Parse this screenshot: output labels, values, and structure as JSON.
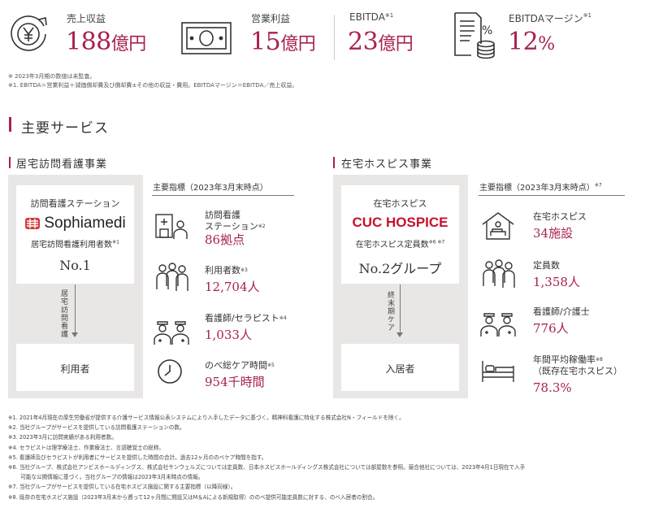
{
  "kpis": [
    {
      "label": "売上収益",
      "sup": "",
      "number": "188",
      "unit": "億円",
      "icon": "yen-coin-up-icon"
    },
    {
      "label": "営業利益",
      "sup": "",
      "number": "15",
      "unit": "億円",
      "icon": "banknote-icon"
    },
    {
      "label": "EBITDA",
      "sup": "※1",
      "number": "23",
      "unit": "億円",
      "icon": ""
    },
    {
      "label": "EBITDAマージン",
      "sup": "※1",
      "number": "12",
      "unit": "%",
      "icon": "document-coins-percent-icon"
    }
  ],
  "kpi_notes": [
    "※ 2023年3月期の数値は未監査。",
    "※1. EBITDA＝営業利益＋減価償却費及び償却費±その他の収益・費用。EBITDAマージン＝EBITDA／売上収益。"
  ],
  "section_title": "主要サービス",
  "services": [
    {
      "title": "居宅訪問看護事業",
      "box_line1": "訪問看護ステーション",
      "brand": "Sophiamedi",
      "box_line2": "居宅訪問看護利用者数",
      "box_line2_sup": "※1",
      "rank": "No.1",
      "flow_label": "居宅訪問看護",
      "bottom_label": "利用者",
      "indicators_head": "主要指標（2023年3月末時点）",
      "indicators_head_sup": "",
      "indicators": [
        {
          "label1": "訪問看護",
          "label2": "ステーション",
          "sup": "※2",
          "value": "86拠点",
          "icon": "nurse-station-icon"
        },
        {
          "label1": "利用者数",
          "label2": "",
          "sup": "※3",
          "value": "12,704人",
          "icon": "users-group-icon"
        },
        {
          "label1": "看護師/セラピスト",
          "label2": "",
          "sup": "※4",
          "value": "1,033人",
          "icon": "nurses-icon"
        },
        {
          "label1": "のべ総ケア時間",
          "label2": "",
          "sup": "※5",
          "value": "954千時間",
          "icon": "clock-icon"
        }
      ]
    },
    {
      "title": "在宅ホスピス事業",
      "box_line1": "在宅ホスピス",
      "brand": "CUC HOSPICE",
      "box_line2": "在宅ホスピス定員数",
      "box_line2_sup": "※6 ※7",
      "rank": "No.2グループ",
      "flow_label": "終末期ケア",
      "bottom_label": "入居者",
      "indicators_head": "主要指標（2023年3月末時点）",
      "indicators_head_sup": "※7",
      "indicators": [
        {
          "label1": "在宅ホスピス",
          "label2": "",
          "sup": "",
          "value": "34施設",
          "icon": "hospice-house-icon"
        },
        {
          "label1": "定員数",
          "label2": "",
          "sup": "",
          "value": "1,358人",
          "icon": "users-group-icon"
        },
        {
          "label1": "看護師/介護士",
          "label2": "",
          "sup": "",
          "value": "776人",
          "icon": "nurses-icon"
        },
        {
          "label1": "年間平均稼働率",
          "label2": "（既存在宅ホスピス）",
          "sup": "※8",
          "value": "78.3%",
          "icon": "bed-icon"
        }
      ]
    }
  ],
  "footnotes": [
    "※1. 2021年4月現在の厚生労働省が提供する介護サービス情報公表システムにより入手したデータに基づく。精神科看護に特化する株式会社N・フィールドを除く。",
    "※2. 当社グループがサービスを提供している訪問看護ステーションの数。",
    "※3. 2023年3月に訪問実績がある利用者数。",
    "※4. セラピストは理学療法士、作業療法士、言語聴覚士の総称。",
    "※5. 看護師及びセラピストが利用者にサービスを提供した時間の合計。過去12ヶ月ののべケア時間を指す。",
    "※6. 当社グループ、株式会社アンビスホールディングス、株式会社サンウェルズについては定員数、日本ホスピスホールディングス株式会社については部屋数を参照。競合他社については、2023年4月1日現在で入手",
    "　　 可能な公開情報に基づく。当社グループの情報は2023年3月末時点の情報。",
    "※7. 当社グループがサービスを提供している在宅ホスピス施設に関する主要指標（以降同様）。",
    "※8. 既存の在宅ホスピス施設（2023年3月末から遡って12ヶ月間に開設又はM＆Aによる新規取得）ののべ提供可能定員数に対する、のべ入居者の割合。"
  ],
  "colors": {
    "accent": "#a8214f",
    "panel": "#e9e7e5",
    "cuc_red": "#c8102e",
    "sophia_red": "#d23a3a"
  }
}
